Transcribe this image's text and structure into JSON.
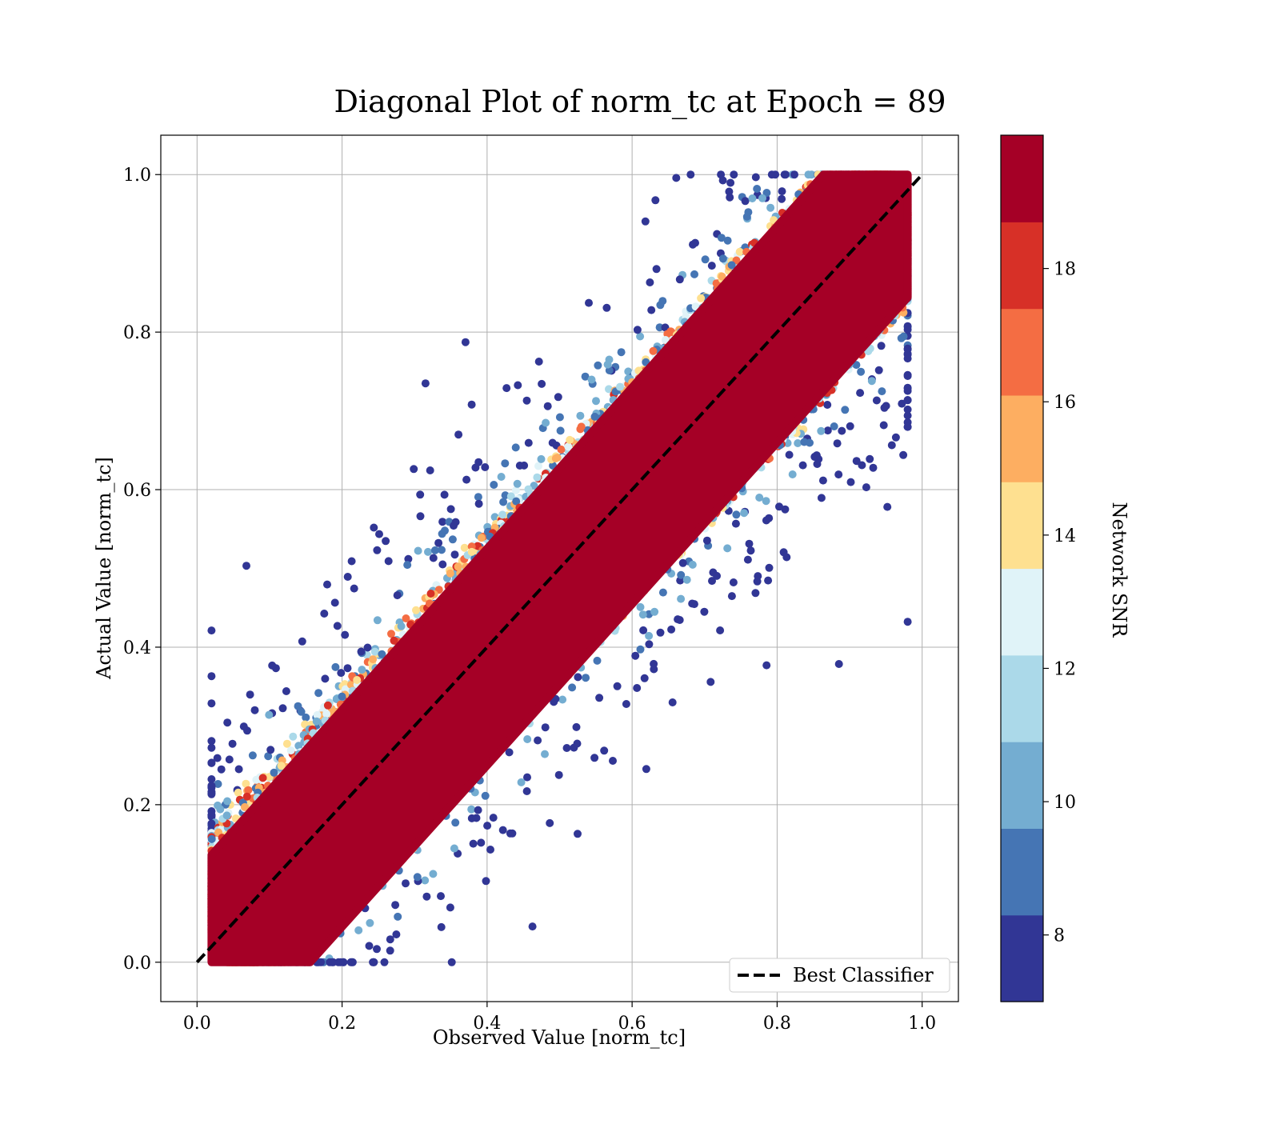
{
  "chart_data": {
    "type": "scatter",
    "title": "Diagonal Plot of norm_tc at Epoch = 89",
    "xlabel": "Observed Value [norm_tc]",
    "ylabel": "Actual Value [norm_tc]",
    "xlim": [
      -0.05,
      1.05
    ],
    "ylim": [
      -0.05,
      1.05
    ],
    "x_ticks": [
      "0.0",
      "0.2",
      "0.4",
      "0.6",
      "0.8",
      "1.0"
    ],
    "y_ticks": [
      "0.0",
      "0.2",
      "0.4",
      "0.6",
      "0.8",
      "1.0"
    ],
    "grid": true,
    "reference_line": {
      "label": "Best Classifier",
      "style": "dashed",
      "color": "#000000",
      "from": [
        0.0,
        0.0
      ],
      "to": [
        1.0,
        1.0
      ]
    },
    "legend": {
      "placement": "lower-right",
      "entries": [
        "Best Classifier"
      ]
    },
    "colorbar": {
      "label": "Network SNR",
      "range": [
        7,
        20
      ],
      "ticks": [
        "8",
        "10",
        "12",
        "14",
        "16",
        "18"
      ],
      "tick_values": [
        8,
        10,
        12,
        14,
        16,
        18
      ],
      "colors": [
        "#313695",
        "#4575b4",
        "#74add1",
        "#abd9e9",
        "#e0f3f8",
        "#fee090",
        "#fdae61",
        "#f46d43",
        "#d73027",
        "#a50026"
      ]
    },
    "points_description": {
      "band_center": "y = x",
      "range_x": [
        0.02,
        0.98
      ],
      "range_y": [
        0.0,
        1.0
      ],
      "high_snr_color": "#a50026",
      "low_snr_color": "#313695"
    }
  }
}
